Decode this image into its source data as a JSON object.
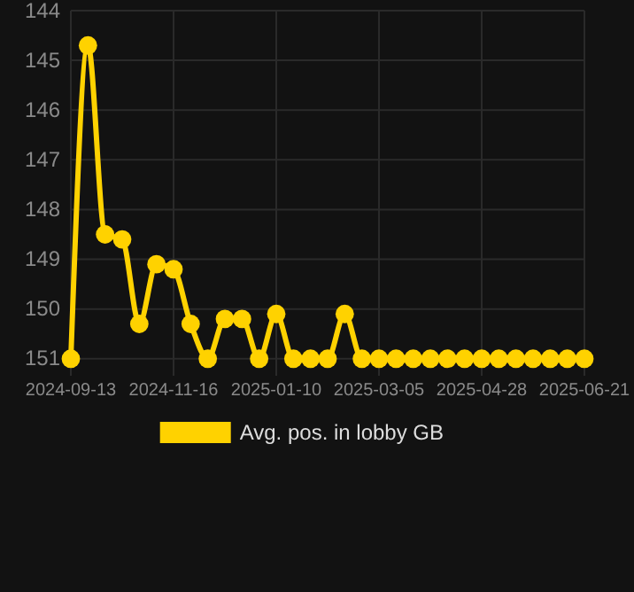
{
  "chart_data": {
    "type": "line",
    "categories": [
      "2024-09-13",
      null,
      null,
      null,
      null,
      null,
      "2024-11-16",
      null,
      null,
      null,
      null,
      null,
      "2025-01-10",
      null,
      null,
      null,
      null,
      null,
      "2025-03-05",
      null,
      null,
      null,
      null,
      null,
      "2025-04-28",
      null,
      null,
      null,
      null,
      null,
      "2025-06-21"
    ],
    "series": [
      {
        "name": "Avg. pos. in lobby GB",
        "color": "#ffd200",
        "values": [
          151,
          144.7,
          148.5,
          148.6,
          150.3,
          149.1,
          149.2,
          150.3,
          151,
          150.2,
          150.2,
          151,
          150.1,
          151,
          151,
          151,
          150.1,
          151,
          151,
          151,
          151,
          151,
          151,
          151,
          151,
          151,
          151,
          151,
          151,
          151,
          151
        ]
      }
    ],
    "ylim": [
      151.2,
      144
    ],
    "yticks": [
      144,
      145,
      146,
      147,
      148,
      149,
      150,
      151
    ],
    "grid": true,
    "legend": "bottom",
    "marker": "circle",
    "line_style": "solid"
  }
}
